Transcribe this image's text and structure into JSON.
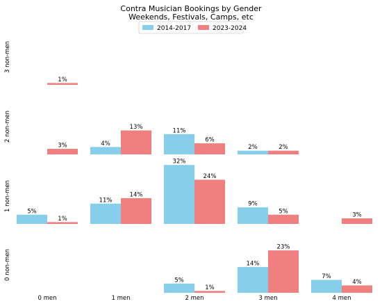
{
  "chart_data": {
    "type": "bar",
    "title": "Contra Musician Bookings by Gender",
    "subtitle": "Weekends, Festivals, Camps, etc",
    "legend_position": "top-center",
    "columns": [
      "0 men",
      "1 men",
      "2 men",
      "3 men",
      "4 men"
    ],
    "rows": [
      "3 non-men",
      "2 non-men",
      "1 non-men",
      "0 non-men"
    ],
    "series": [
      {
        "name": "2014-2017",
        "color": "#87CEEB"
      },
      {
        "name": "2023-2024",
        "color": "#F08080"
      }
    ],
    "cells": [
      {
        "row": "3 non-men",
        "col": "0 men",
        "values": [
          null,
          1
        ]
      },
      {
        "row": "2 non-men",
        "col": "0 men",
        "values": [
          null,
          3
        ]
      },
      {
        "row": "2 non-men",
        "col": "1 men",
        "values": [
          4,
          13
        ]
      },
      {
        "row": "2 non-men",
        "col": "2 men",
        "values": [
          11,
          6
        ]
      },
      {
        "row": "2 non-men",
        "col": "3 men",
        "values": [
          2,
          2
        ]
      },
      {
        "row": "1 non-men",
        "col": "0 men",
        "values": [
          5,
          1
        ]
      },
      {
        "row": "1 non-men",
        "col": "1 men",
        "values": [
          11,
          14
        ]
      },
      {
        "row": "1 non-men",
        "col": "2 men",
        "values": [
          32,
          24
        ]
      },
      {
        "row": "1 non-men",
        "col": "3 men",
        "values": [
          9,
          5
        ]
      },
      {
        "row": "1 non-men",
        "col": "4 men",
        "values": [
          null,
          3
        ]
      },
      {
        "row": "0 non-men",
        "col": "2 men",
        "values": [
          5,
          1
        ]
      },
      {
        "row": "0 non-men",
        "col": "3 men",
        "values": [
          14,
          23
        ]
      },
      {
        "row": "0 non-men",
        "col": "4 men",
        "values": [
          7,
          4
        ]
      }
    ],
    "value_suffix": "%"
  }
}
